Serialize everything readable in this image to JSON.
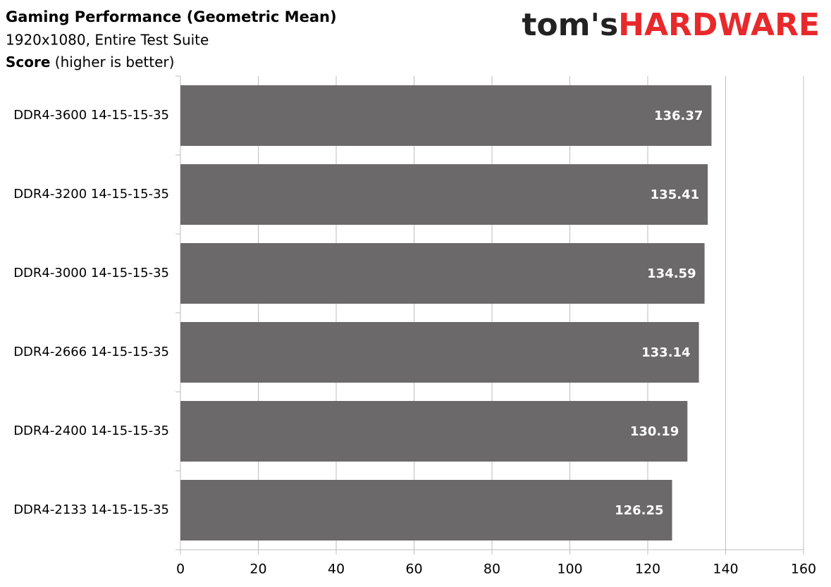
{
  "chart_data": {
    "type": "bar",
    "orientation": "horizontal",
    "title": "Gaming Performance (Geometric Mean)",
    "subtitle": "1920x1080, Entire Test Suite",
    "axis_label": {
      "bold": "Score",
      "rest": "(higher is better)"
    },
    "brand": [
      "tom's",
      "HARDWARE"
    ],
    "categories": [
      "DDR4-3600 14-15-15-35",
      "DDR4-3200 14-15-15-35",
      "DDR4-3000 14-15-15-35",
      "DDR4-2666 14-15-15-35",
      "DDR4-2400 14-15-15-35",
      "DDR4-2133 14-15-15-35"
    ],
    "values": [
      136.37,
      135.41,
      134.59,
      133.14,
      130.19,
      126.25
    ],
    "color": "#6b6969",
    "xlim": [
      0,
      160
    ],
    "xticks": [
      0,
      20,
      40,
      60,
      80,
      100,
      120,
      140,
      160
    ],
    "grid": true
  }
}
